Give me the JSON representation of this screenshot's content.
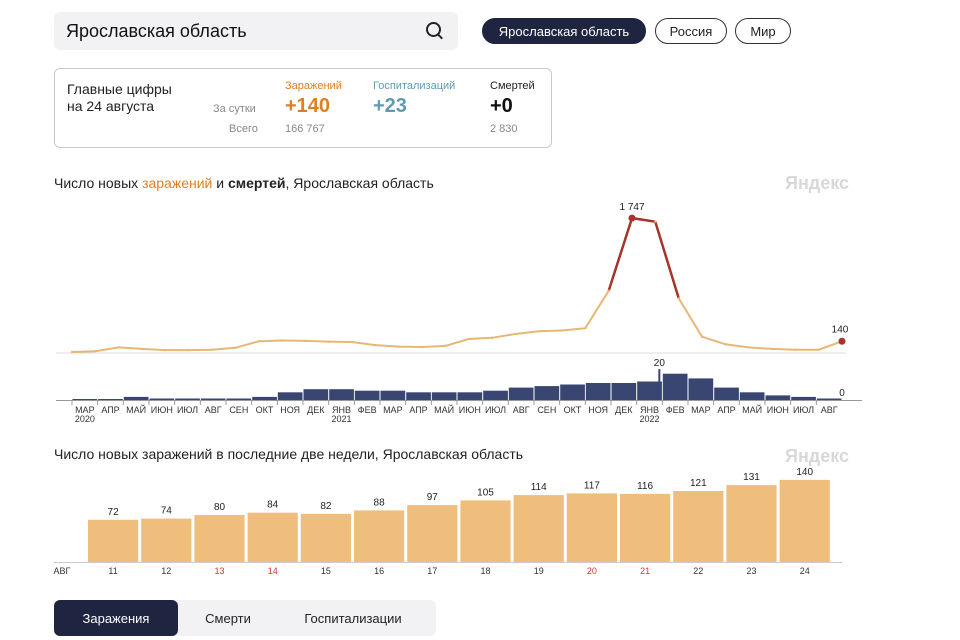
{
  "search": {
    "value": "Ярославская область"
  },
  "scopes": [
    {
      "label": "Ярославская область",
      "active": true
    },
    {
      "label": "Россия",
      "active": false
    },
    {
      "label": "Мир",
      "active": false
    }
  ],
  "summary": {
    "title": "Главные цифры\nна 24 августа",
    "row_daily": "За сутки",
    "row_total": "Всего",
    "cases": {
      "label": "Заражений",
      "daily": "+140",
      "total": "166 767",
      "color": "#e07f1f"
    },
    "hosp": {
      "label": "Госпитализаций",
      "daily": "+23",
      "total": "",
      "color": "#5f9bb0"
    },
    "deaths": {
      "label": "Смертей",
      "daily": "+0",
      "total": "2 830",
      "color": "#111111"
    }
  },
  "chart_main": {
    "title_prefix": "Число новых ",
    "title_infections": "заражений",
    "title_and": " и ",
    "title_deaths": "смертей",
    "title_suffix": ", Ярославская область",
    "watermark": "Яндекс"
  },
  "chart_bars": {
    "title": "Число новых заражений в последние две недели, Ярославская область",
    "watermark": "Яндекс"
  },
  "tabs": [
    {
      "label": "Заражения",
      "active": true
    },
    {
      "label": "Смерти",
      "active": false
    },
    {
      "label": "Госпитализации",
      "active": false
    }
  ],
  "chart_data": [
    {
      "type": "line",
      "series": [
        {
          "name": "заражений",
          "color": "#e8b774"
        }
      ],
      "x": [
        "2020-03",
        "2020-04",
        "2020-05",
        "2020-06",
        "2020-07",
        "2020-08",
        "2020-09",
        "2020-10",
        "2020-11",
        "2020-12",
        "2021-01",
        "2021-02",
        "2021-03",
        "2021-04",
        "2021-05",
        "2021-06",
        "2021-07",
        "2021-08",
        "2021-09",
        "2021-10",
        "2021-11",
        "2021-12",
        "2022-01",
        "2022-01-15",
        "2022-02",
        "2022-02-08",
        "2022-02-20",
        "2022-03",
        "2022-04",
        "2022-05",
        "2022-06",
        "2022-07",
        "2022-08",
        "2022-08-24"
      ],
      "values": [
        0,
        10,
        60,
        40,
        25,
        25,
        30,
        55,
        140,
        150,
        145,
        135,
        130,
        90,
        70,
        65,
        80,
        170,
        185,
        235,
        270,
        280,
        310,
        800,
        1747,
        1700,
        700,
        200,
        100,
        60,
        40,
        30,
        30,
        140
      ],
      "annotations": [
        {
          "label": "1 747",
          "value": 1747
        },
        {
          "label": "140",
          "value": 140
        }
      ],
      "ylim": [
        0,
        1800
      ]
    },
    {
      "type": "bar",
      "series": [
        {
          "name": "смертей",
          "color": "#3a4672"
        }
      ],
      "month_ticks": [
        "МАР",
        "АПР",
        "МАЙ",
        "ИЮН",
        "ИЮЛ",
        "АВГ",
        "СЕН",
        "ОКТ",
        "НОЯ",
        "ДЕК",
        "ЯНВ",
        "ФЕВ",
        "МАР",
        "АПР",
        "МАЙ",
        "ИЮН",
        "ИЮЛ",
        "АВГ",
        "СЕН",
        "ОКТ",
        "НОЯ",
        "ДЕК",
        "ЯНВ",
        "ФЕВ",
        "МАР",
        "АПР",
        "МАЙ",
        "ИЮН",
        "ИЮЛ",
        "АВГ"
      ],
      "year_ticks": [
        {
          "label": "2020",
          "month_index": 0
        },
        {
          "label": "2021",
          "month_index": 10
        },
        {
          "label": "2022",
          "month_index": 22
        }
      ],
      "monthly_values": [
        0,
        0,
        2,
        1,
        1,
        1,
        1,
        2,
        5,
        7,
        7,
        6,
        6,
        5,
        5,
        5,
        6,
        8,
        9,
        10,
        11,
        11,
        12,
        17,
        14,
        8,
        5,
        3,
        2,
        1
      ],
      "annotations": [
        {
          "label": "20",
          "value": 20
        },
        {
          "label": "0",
          "value": 0
        }
      ],
      "ylim": [
        0,
        22
      ]
    },
    {
      "type": "bar",
      "series": [
        {
          "name": "заражений",
          "color": "#efbd7c"
        }
      ],
      "x_prefix": "АВГ",
      "categories": [
        "11",
        "12",
        "13",
        "14",
        "15",
        "16",
        "17",
        "18",
        "19",
        "20",
        "21",
        "22",
        "23",
        "24"
      ],
      "weekend": [
        false,
        false,
        true,
        true,
        false,
        false,
        false,
        false,
        false,
        true,
        true,
        false,
        false,
        false
      ],
      "values": [
        72,
        74,
        80,
        84,
        82,
        88,
        97,
        105,
        114,
        117,
        116,
        121,
        131,
        140
      ],
      "ylim": [
        0,
        150
      ]
    }
  ]
}
